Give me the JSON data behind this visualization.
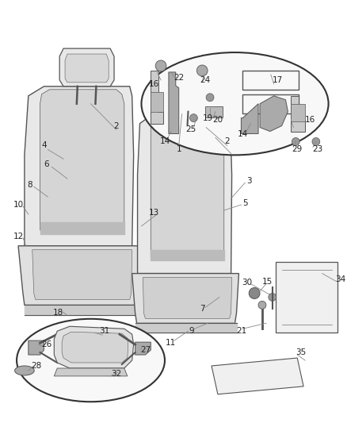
{
  "bg_color": "#ffffff",
  "line_color": "#555555",
  "label_color": "#222222",
  "font_size": 7.5
}
